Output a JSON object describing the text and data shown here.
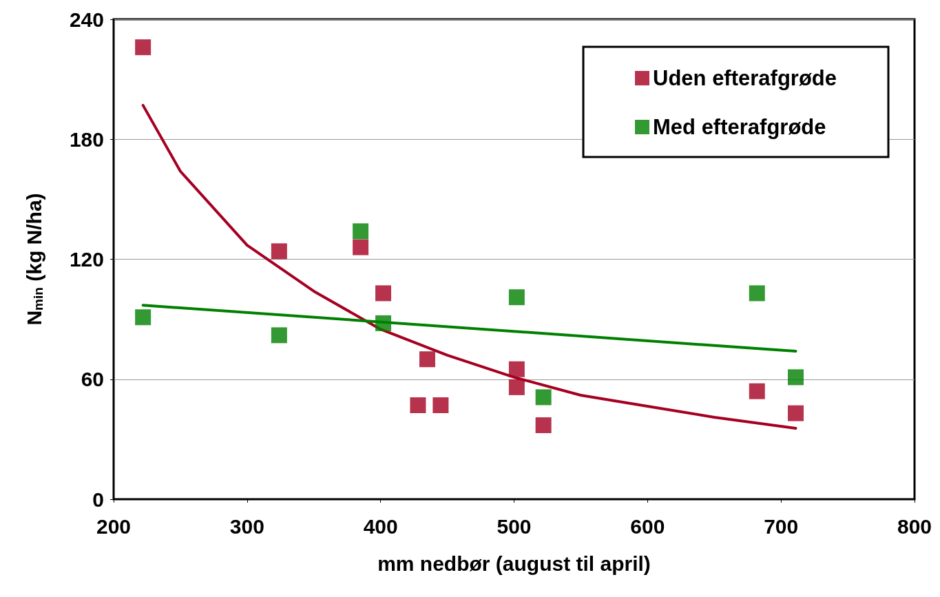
{
  "chart_data": {
    "type": "scatter",
    "xlabel": "mm nedbør (august til april)",
    "ylabel": "N$_{min}$ (kg N/ha)",
    "xlim": [
      200,
      800
    ],
    "xticks": [
      200,
      300,
      400,
      500,
      600,
      700,
      800
    ],
    "ylim": [
      0,
      240
    ],
    "yticks": [
      0,
      60,
      120,
      180,
      240
    ],
    "grid": "y",
    "legend": "top right",
    "marker": "square",
    "series": [
      {
        "name": "Uden efterafgrøde",
        "color": "#a50021",
        "x": [
          222,
          324,
          385,
          402,
          435,
          428,
          445,
          502,
          502,
          522,
          682,
          711
        ],
        "values": [
          226,
          124,
          126,
          103,
          70,
          47,
          47,
          65,
          56,
          37,
          54,
          43
        ]
      },
      {
        "name": "Med efterafgrøde",
        "color": "#008000",
        "x": [
          222,
          324,
          385,
          402,
          502,
          522,
          682,
          711
        ],
        "values": [
          91,
          82,
          134,
          88,
          101,
          51,
          103,
          61
        ]
      },
      {
        "type": "line",
        "color": "#a50021",
        "marker": "none",
        "x": [
          222,
          250,
          300,
          350,
          400,
          450,
          500,
          550,
          600,
          650,
          711
        ],
        "values": [
          197,
          164,
          127,
          104,
          85,
          72,
          61,
          52,
          46.5,
          41,
          35.5
        ]
      },
      {
        "type": "line",
        "color": "#008000",
        "marker": "none",
        "x": [
          222,
          711
        ],
        "values": [
          97,
          74
        ]
      }
    ]
  }
}
